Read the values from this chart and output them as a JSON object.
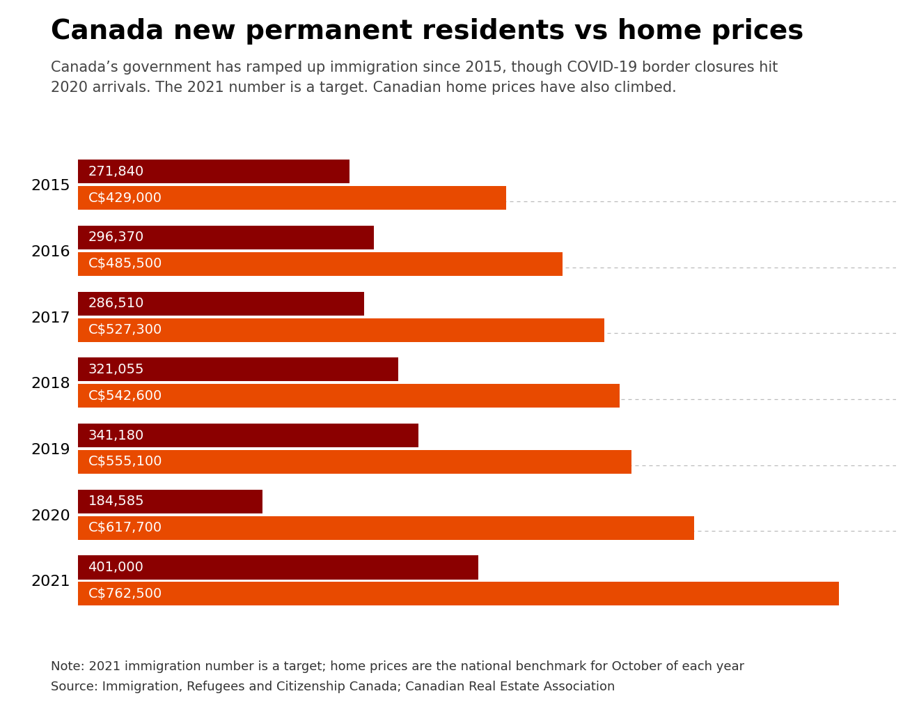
{
  "title": "Canada new permanent residents vs home prices",
  "subtitle": "Canada’s government has ramped up immigration since 2015, though COVID-19 border closures hit\n2020 arrivals. The 2021 number is a target. Canadian home prices have also climbed.",
  "note": "Note: 2021 immigration number is a target; home prices are the national benchmark for October of each year",
  "source": "Source: Immigration, Refugees and Citizenship Canada; Canadian Real Estate Association",
  "years": [
    "2015",
    "2016",
    "2017",
    "2018",
    "2019",
    "2020",
    "2021"
  ],
  "immigration": [
    271840,
    296370,
    286510,
    321055,
    341180,
    184585,
    401000
  ],
  "immigration_labels": [
    "271,840",
    "296,370",
    "286,510",
    "321,055",
    "341,180",
    "184,585",
    "401,000"
  ],
  "home_prices": [
    429000,
    485500,
    527300,
    542600,
    555100,
    617700,
    762500
  ],
  "home_price_labels": [
    "C$429,000",
    "C$485,500",
    "C$527,300",
    "C$542,600",
    "C$555,100",
    "C$617,700",
    "C$762,500"
  ],
  "immigration_color": "#8B0000",
  "home_price_color": "#E84A00",
  "background_color": "#FFFFFF",
  "title_fontsize": 28,
  "subtitle_fontsize": 15,
  "note_fontsize": 13,
  "label_fontsize": 14,
  "year_fontsize": 16,
  "bar_height": 0.36,
  "xlim_max": 820000
}
